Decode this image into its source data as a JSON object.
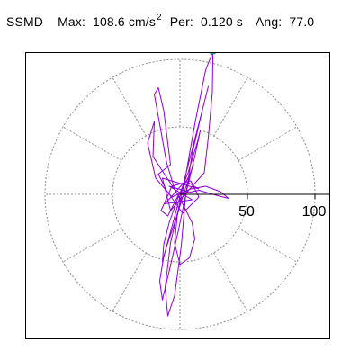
{
  "header": {
    "title": "SSMD",
    "max_label": "Max:",
    "max_value": "108.6",
    "max_unit": "cm/s",
    "max_exponent": "2",
    "per_label": "Per:",
    "per_value": "0.120",
    "per_unit": "s",
    "ang_label": "Ang:",
    "ang_value": "77.0"
  },
  "colors": {
    "trace": "#8f00d8",
    "peak_marker": "#10a784",
    "axis": "#000000",
    "grid": "#8c8c8c",
    "frame": "#000000"
  },
  "chart_data": {
    "type": "scatter",
    "title": "SSMD",
    "ticks": [
      "50",
      "100"
    ],
    "radial_range": [
      0,
      118
    ],
    "x_range": [
      -118,
      118
    ],
    "y_range": [
      -106,
      106
    ],
    "rings": [
      50,
      100
    ],
    "spokes_deg": [
      0,
      30,
      60,
      90,
      120,
      150,
      180,
      210,
      240,
      270,
      300,
      330
    ],
    "grid": "on",
    "peak": {
      "x": 24.4,
      "y": 105.8,
      "magnitude": 108.6,
      "angle_deg": 77.0
    },
    "series": [
      {
        "values": [
          [
            0,
            0
          ],
          [
            6,
            2
          ],
          [
            -8,
            6
          ],
          [
            9,
            -4
          ],
          [
            -11,
            -7
          ],
          [
            4,
            10
          ],
          [
            14,
            4
          ],
          [
            -13,
            12
          ],
          [
            -7,
            -12
          ],
          [
            18,
            16
          ],
          [
            21,
            42
          ],
          [
            24,
            76
          ],
          [
            24.4,
            105.8
          ],
          [
            19,
            92
          ],
          [
            11,
            52
          ],
          [
            3,
            7
          ],
          [
            -7,
            -36
          ],
          [
            -11,
            -69
          ],
          [
            -9,
            -90
          ],
          [
            -4,
            -75
          ],
          [
            1,
            -38
          ],
          [
            4,
            -3
          ],
          [
            9,
            30
          ],
          [
            16,
            60
          ],
          [
            21,
            80
          ],
          [
            18,
            68
          ],
          [
            9,
            33
          ],
          [
            1,
            2
          ],
          [
            -6,
            -24
          ],
          [
            -12,
            -46
          ],
          [
            -15,
            -64
          ],
          [
            -13,
            -78
          ],
          [
            -8,
            -57
          ],
          [
            -1,
            -26
          ],
          [
            5,
            3
          ],
          [
            11,
            28
          ],
          [
            15,
            47
          ],
          [
            13,
            39
          ],
          [
            6,
            16
          ],
          [
            -2,
            -4
          ],
          [
            -8,
            -21
          ],
          [
            -12,
            -37
          ],
          [
            -13,
            -50
          ],
          [
            -10,
            -39
          ],
          [
            -3,
            -18
          ],
          [
            4,
            4
          ],
          [
            10,
            22
          ],
          [
            7,
            14
          ],
          [
            -3,
            -4
          ],
          [
            -9,
            -16
          ],
          [
            -14,
            -12
          ],
          [
            -6,
            6
          ],
          [
            8,
            10
          ],
          [
            14,
            -2
          ],
          [
            2,
            -14
          ],
          [
            -10,
            3
          ],
          [
            -16,
            15
          ],
          [
            -7,
            22
          ],
          [
            -12,
            62
          ],
          [
            -16,
            79
          ],
          [
            -19,
            74
          ],
          [
            -15,
            52
          ],
          [
            -10,
            24
          ],
          [
            -4,
            4
          ],
          [
            3,
            -9
          ],
          [
            9,
            -21
          ],
          [
            11,
            -33
          ],
          [
            7,
            -47
          ],
          [
            0,
            -52
          ],
          [
            -4,
            -36
          ],
          [
            -2,
            -16
          ],
          [
            1,
            -4
          ],
          [
            -20,
            28
          ],
          [
            -19,
            54
          ],
          [
            -24,
            38
          ],
          [
            -18,
            12
          ],
          [
            -6,
            -2
          ],
          [
            8,
            4
          ],
          [
            19,
            6
          ],
          [
            30,
            2
          ],
          [
            36,
            -3
          ],
          [
            28,
            -1
          ],
          [
            14,
            3
          ],
          [
            0,
            0
          ]
        ]
      }
    ]
  }
}
